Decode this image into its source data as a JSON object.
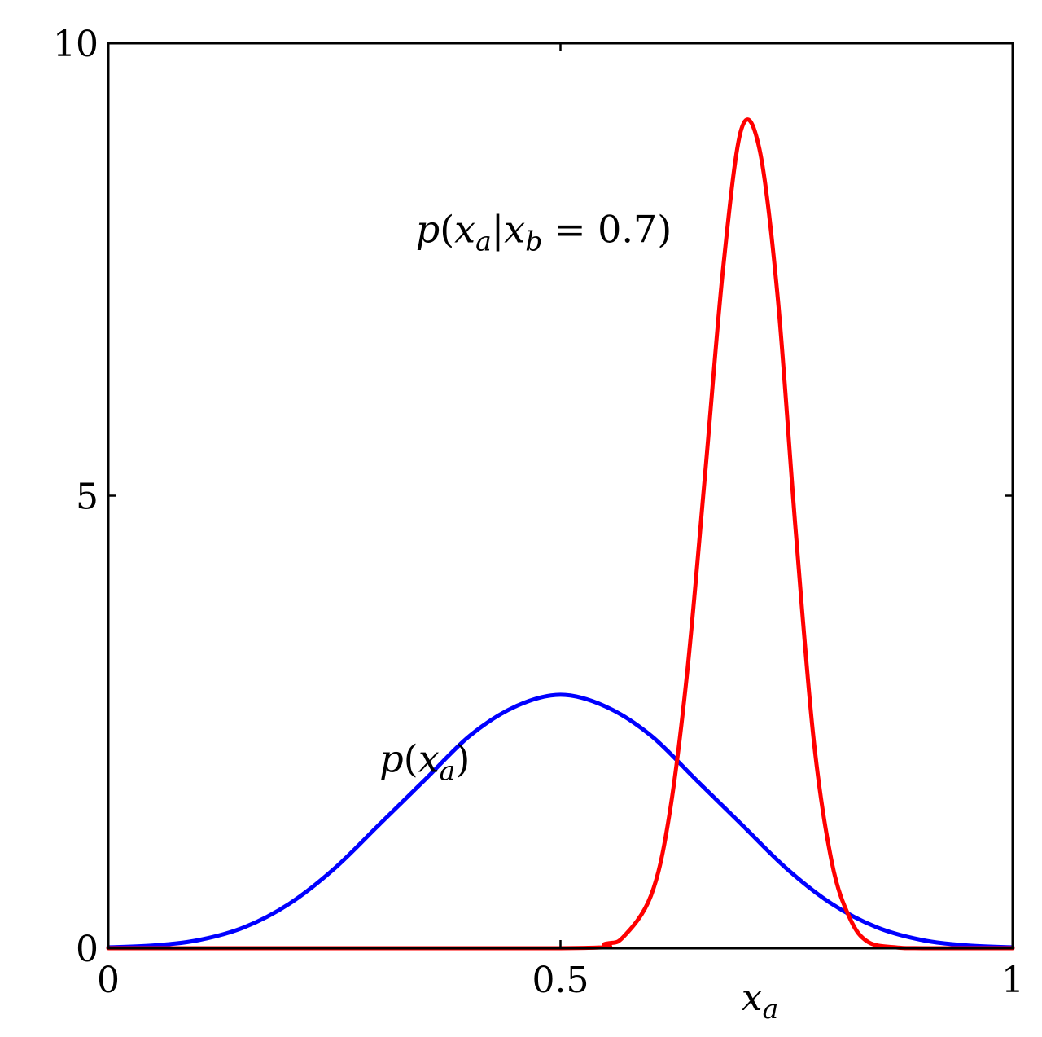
{
  "chart_data": {
    "type": "line",
    "xlim": [
      0,
      1
    ],
    "ylim": [
      0,
      10
    ],
    "xticks": [
      0,
      0.5,
      1
    ],
    "xtick_labels": [
      "0",
      "0.5",
      "1"
    ],
    "yticks": [
      0,
      5,
      10
    ],
    "ytick_labels": [
      "0",
      "5",
      "10"
    ],
    "grid": false,
    "box": true,
    "xlabel": {
      "base": "x",
      "sub": "a"
    },
    "series": [
      {
        "name": "p(x_a)",
        "color": "#0000ff",
        "x": [
          0.0,
          0.05,
          0.1,
          0.15,
          0.2,
          0.25,
          0.3,
          0.35,
          0.4,
          0.45,
          0.5,
          0.55,
          0.6,
          0.65,
          0.7,
          0.75,
          0.8,
          0.85,
          0.9,
          0.95,
          1.0
        ],
        "y": [
          0.01,
          0.03,
          0.09,
          0.23,
          0.49,
          0.88,
          1.37,
          1.86,
          2.35,
          2.67,
          2.8,
          2.67,
          2.35,
          1.86,
          1.37,
          0.88,
          0.49,
          0.23,
          0.09,
          0.03,
          0.01
        ]
      },
      {
        "name": "p(x_a|x_b = 0.7)",
        "color": "#ff0000",
        "x": [
          0.0,
          0.5,
          0.55,
          0.57,
          0.6,
          0.62,
          0.64,
          0.66,
          0.68,
          0.7,
          0.72,
          0.74,
          0.76,
          0.78,
          0.8,
          0.82,
          0.84,
          0.87,
          0.9,
          1.0
        ],
        "y": [
          0.0,
          0.0,
          0.05,
          0.13,
          0.58,
          1.45,
          3.04,
          5.25,
          7.53,
          9.05,
          8.83,
          7.21,
          4.62,
          2.3,
          0.95,
          0.33,
          0.07,
          0.01,
          0.0,
          0.0
        ]
      }
    ],
    "annotations": [
      {
        "id": "pxa",
        "parts": [
          {
            "t": "p",
            "s": "n"
          },
          {
            "t": "(",
            "s": "u"
          },
          {
            "t": "x",
            "s": "n"
          },
          {
            "t": "a",
            "s": "sub"
          },
          {
            "t": ")",
            "s": "u"
          }
        ],
        "x": 0.3,
        "y": 1.95
      },
      {
        "id": "pcond",
        "parts": [
          {
            "t": "p",
            "s": "n"
          },
          {
            "t": "(",
            "s": "u"
          },
          {
            "t": "x",
            "s": "n"
          },
          {
            "t": "a",
            "s": "sub"
          },
          {
            "t": "|",
            "s": "u"
          },
          {
            "t": "x",
            "s": "n"
          },
          {
            "t": "b",
            "s": "sub"
          },
          {
            "t": " = 0.7)",
            "s": "u"
          }
        ],
        "x": 0.34,
        "y": 7.8
      }
    ]
  }
}
